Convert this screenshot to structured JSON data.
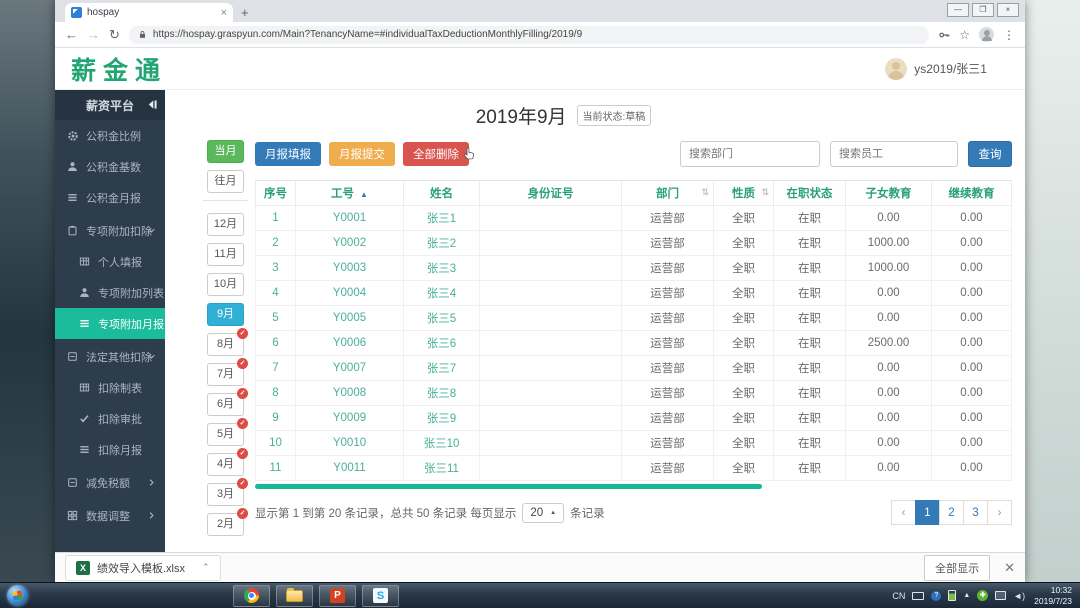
{
  "colors": {
    "brand_green": "#21a673",
    "accent_teal": "#1abc9c",
    "active_month_blue": "#31b0d5",
    "current_month_green": "#5cb85c",
    "badge_red": "#dd4b42",
    "primary_blue": "#337ab7",
    "warning_orange": "#f0ad4e",
    "danger_red": "#d9534f"
  },
  "browser": {
    "tab_title": "hospay",
    "url": "https://hospay.graspyun.com/Main?TenancyName=#individualTaxDeductionMonthlyFilling/2019/9"
  },
  "app_header": {
    "logo": "薪金通",
    "user": "ys2019/张三1"
  },
  "sidebar": {
    "title": "薪资平台",
    "items": [
      {
        "icon": "gear-icon",
        "label": "公积金比例",
        "type": "item"
      },
      {
        "icon": "user-icon",
        "label": "公积金基数",
        "type": "item"
      },
      {
        "icon": "list-icon",
        "label": "公积金月报",
        "type": "item"
      },
      {
        "icon": "clipboard-icon",
        "label": "专项附加扣除",
        "type": "group",
        "arrow": "down"
      },
      {
        "icon": "table-icon",
        "label": "个人填报",
        "type": "sub"
      },
      {
        "icon": "user-icon",
        "label": "专项附加列表",
        "type": "sub"
      },
      {
        "icon": "list-icon",
        "label": "专项附加月报",
        "type": "sub",
        "active": true
      },
      {
        "icon": "box-minus-icon",
        "label": "法定其他扣除",
        "type": "group",
        "arrow": "down"
      },
      {
        "icon": "table-icon",
        "label": "扣除制表",
        "type": "sub"
      },
      {
        "icon": "check-icon",
        "label": "扣除审批",
        "type": "sub"
      },
      {
        "icon": "list-icon",
        "label": "扣除月报",
        "type": "sub"
      },
      {
        "icon": "box-minus-icon",
        "label": "减免税额",
        "type": "group",
        "arrow": "right"
      },
      {
        "icon": "grid-icon",
        "label": "数据调整",
        "type": "group",
        "arrow": "right"
      }
    ]
  },
  "month_nav": {
    "current_label": "当月",
    "past_label": "往月",
    "months": [
      {
        "label": "12月"
      },
      {
        "label": "11月"
      },
      {
        "label": "10月"
      },
      {
        "label": "9月",
        "active": true
      },
      {
        "label": "8月",
        "done": true
      },
      {
        "label": "7月",
        "done": true
      },
      {
        "label": "6月",
        "done": true
      },
      {
        "label": "5月",
        "done": true
      },
      {
        "label": "4月",
        "done": true
      },
      {
        "label": "3月",
        "done": true
      },
      {
        "label": "2月",
        "done": true
      }
    ]
  },
  "main": {
    "title": "2019年9月",
    "status_badge": "当前状态:草稿",
    "actions": [
      {
        "label": "月报填报",
        "color": "#337ab7"
      },
      {
        "label": "月报提交",
        "color": "#f0ad4e"
      },
      {
        "label": "全部删除",
        "color": "#d9534f"
      }
    ],
    "search_department_placeholder": "搜索部门",
    "search_employee_placeholder": "搜索员工",
    "query_label": "查询",
    "table": {
      "headers": [
        {
          "label": "序号"
        },
        {
          "label": "工号",
          "sort": "asc"
        },
        {
          "label": "姓名"
        },
        {
          "label": "身份证号"
        },
        {
          "label": "部门",
          "sort": "both"
        },
        {
          "label": "性质",
          "sort": "both"
        },
        {
          "label": "在职状态"
        },
        {
          "label": "子女教育"
        },
        {
          "label": "继续教育"
        }
      ],
      "rows": [
        [
          "1",
          "Y0001",
          "张三1",
          "",
          "运营部",
          "全职",
          "在职",
          "0.00",
          "0.00"
        ],
        [
          "2",
          "Y0002",
          "张三2",
          "",
          "运营部",
          "全职",
          "在职",
          "1000.00",
          "0.00"
        ],
        [
          "3",
          "Y0003",
          "张三3",
          "",
          "运营部",
          "全职",
          "在职",
          "1000.00",
          "0.00"
        ],
        [
          "4",
          "Y0004",
          "张三4",
          "",
          "运营部",
          "全职",
          "在职",
          "0.00",
          "0.00"
        ],
        [
          "5",
          "Y0005",
          "张三5",
          "",
          "运营部",
          "全职",
          "在职",
          "0.00",
          "0.00"
        ],
        [
          "6",
          "Y0006",
          "张三6",
          "",
          "运营部",
          "全职",
          "在职",
          "2500.00",
          "0.00"
        ],
        [
          "7",
          "Y0007",
          "张三7",
          "",
          "运营部",
          "全职",
          "在职",
          "0.00",
          "0.00"
        ],
        [
          "8",
          "Y0008",
          "张三8",
          "",
          "运营部",
          "全职",
          "在职",
          "0.00",
          "0.00"
        ],
        [
          "9",
          "Y0009",
          "张三9",
          "",
          "运营部",
          "全职",
          "在职",
          "0.00",
          "0.00"
        ],
        [
          "10",
          "Y0010",
          "张三10",
          "",
          "运营部",
          "全职",
          "在职",
          "0.00",
          "0.00"
        ],
        [
          "11",
          "Y0011",
          "张三11",
          "",
          "运营部",
          "全职",
          "在职",
          "0.00",
          "0.00"
        ]
      ]
    },
    "pagination": {
      "summary_prefix": "显示第 1 到第 20 条记录，总共 50 条记录 每页显示",
      "page_size": "20",
      "summary_suffix": "条记录",
      "prev": "‹",
      "next": "›",
      "pages": [
        "1",
        "2",
        "3"
      ],
      "active_page": "1"
    }
  },
  "download_bar": {
    "file_name": "绩效导入模板.xlsx",
    "show_all_label": "全部显示"
  },
  "taskbar": {
    "lang": "CN",
    "time": "10:32",
    "date": "2019/7/23"
  }
}
